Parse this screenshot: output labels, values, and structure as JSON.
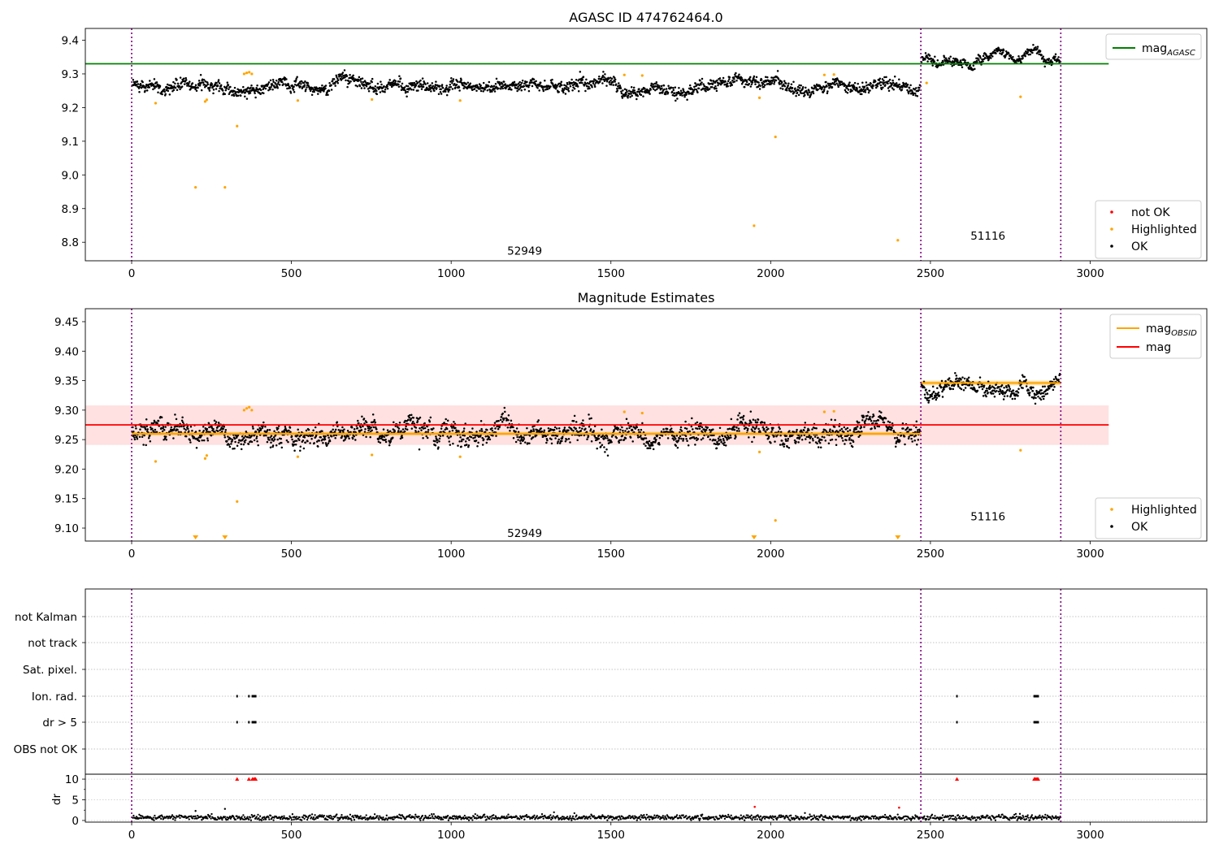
{
  "chart_data": [
    {
      "type": "scatter",
      "title": "AGASC ID 474762464.0",
      "xlim": [
        -145,
        3365
      ],
      "ylim": [
        8.745,
        9.435
      ],
      "xticks": [
        0,
        500,
        1000,
        1500,
        2000,
        2500,
        3000
      ],
      "yticks": [
        8.8,
        8.9,
        9.0,
        9.1,
        9.2,
        9.3,
        9.4
      ],
      "ytick_decimals": 1,
      "obsid_boundaries": [
        0,
        2470,
        2908
      ],
      "obsid_labels": [
        {
          "text": "52949",
          "x": 1230,
          "y": 8.775
        },
        {
          "text": "51116",
          "x": 2680,
          "y": 8.82
        }
      ],
      "mag_agasc": 9.33,
      "mag_agasc_xrange": [
        -145,
        3058
      ],
      "ok_segments": [
        {
          "x": [
            0,
            2470
          ],
          "center": 9.262,
          "spread": 0.014
        },
        {
          "x": [
            2470,
            2908
          ],
          "center": 9.346,
          "spread": 0.01
        }
      ],
      "highlighted": [
        {
          "x": 75,
          "y": 9.213
        },
        {
          "x": 200,
          "y": 8.963
        },
        {
          "x": 230,
          "y": 9.218
        },
        {
          "x": 235,
          "y": 9.223
        },
        {
          "x": 292,
          "y": 8.963
        },
        {
          "x": 330,
          "y": 9.145
        },
        {
          "x": 352,
          "y": 9.3
        },
        {
          "x": 360,
          "y": 9.303
        },
        {
          "x": 368,
          "y": 9.305
        },
        {
          "x": 376,
          "y": 9.3
        },
        {
          "x": 520,
          "y": 9.221
        },
        {
          "x": 752,
          "y": 9.224
        },
        {
          "x": 1028,
          "y": 9.221
        },
        {
          "x": 1542,
          "y": 9.297
        },
        {
          "x": 1598,
          "y": 9.295
        },
        {
          "x": 1948,
          "y": 8.849
        },
        {
          "x": 1965,
          "y": 9.229
        },
        {
          "x": 2015,
          "y": 9.113
        },
        {
          "x": 2168,
          "y": 9.297
        },
        {
          "x": 2198,
          "y": 9.298
        },
        {
          "x": 2398,
          "y": 8.806
        },
        {
          "x": 2488,
          "y": 9.273
        },
        {
          "x": 2782,
          "y": 9.232
        }
      ],
      "legend_lines": [
        {
          "label": "mag",
          "sub": "AGASC",
          "color": "#008000"
        }
      ],
      "legend_points": [
        {
          "label": "not OK",
          "color": "#ff0000"
        },
        {
          "label": "Highlighted",
          "color": "#ffa500"
        },
        {
          "label": "OK",
          "color": "#000000"
        }
      ]
    },
    {
      "type": "scatter",
      "title": "Magnitude Estimates",
      "xlim": [
        -145,
        3365
      ],
      "ylim": [
        9.078,
        9.472
      ],
      "xticks": [
        0,
        500,
        1000,
        1500,
        2000,
        2500,
        3000
      ],
      "yticks": [
        9.1,
        9.15,
        9.2,
        9.25,
        9.3,
        9.35,
        9.4,
        9.45
      ],
      "ytick_decimals": 2,
      "obsid_boundaries": [
        0,
        2470,
        2908
      ],
      "obsid_labels": [
        {
          "text": "52949",
          "x": 1230,
          "y": 9.092
        },
        {
          "text": "51116",
          "x": 2680,
          "y": 9.12
        }
      ],
      "mag": 9.275,
      "mag_band": [
        9.241,
        9.308
      ],
      "mag_xrange": [
        -145,
        3058
      ],
      "mag_obsid": [
        {
          "x": [
            0,
            2470
          ],
          "y": 9.26,
          "band": [
            9.257,
            9.263
          ]
        },
        {
          "x": [
            2470,
            2908
          ],
          "y": 9.346,
          "band": [
            9.342,
            9.35
          ]
        }
      ],
      "ok_segments": [
        {
          "x": [
            0,
            2470
          ],
          "center": 9.262,
          "spread": 0.014
        },
        {
          "x": [
            2470,
            2908
          ],
          "center": 9.346,
          "spread": 0.01
        }
      ],
      "highlighted": [
        {
          "x": 75,
          "y": 9.213
        },
        {
          "x": 230,
          "y": 9.218
        },
        {
          "x": 235,
          "y": 9.223
        },
        {
          "x": 330,
          "y": 9.145
        },
        {
          "x": 352,
          "y": 9.3
        },
        {
          "x": 360,
          "y": 9.303
        },
        {
          "x": 368,
          "y": 9.305
        },
        {
          "x": 376,
          "y": 9.3
        },
        {
          "x": 520,
          "y": 9.221
        },
        {
          "x": 752,
          "y": 9.224
        },
        {
          "x": 1028,
          "y": 9.221
        },
        {
          "x": 1542,
          "y": 9.297
        },
        {
          "x": 1598,
          "y": 9.295
        },
        {
          "x": 1965,
          "y": 9.229
        },
        {
          "x": 2015,
          "y": 9.113
        },
        {
          "x": 2168,
          "y": 9.297
        },
        {
          "x": 2198,
          "y": 9.298
        },
        {
          "x": 2782,
          "y": 9.232
        }
      ],
      "below_range_markers": [
        200,
        292,
        1948,
        2398
      ],
      "legend_lines": [
        {
          "label": "mag",
          "sub": "OBSID",
          "color": "#ffa500"
        },
        {
          "label": "mag",
          "sub": "",
          "color": "#ff0000"
        }
      ],
      "legend_points": [
        {
          "label": "Highlighted",
          "color": "#ffa500"
        },
        {
          "label": "OK",
          "color": "#000000"
        }
      ]
    },
    {
      "type": "scatter",
      "title": "",
      "xlim": [
        -145,
        3365
      ],
      "xticks": [
        0,
        500,
        1000,
        1500,
        2000,
        2500,
        3000
      ],
      "obsid_boundaries": [
        0,
        2470,
        2908
      ],
      "flag_rows": [
        "not Kalman",
        "not track",
        "Sat. pixel.",
        "Ion. rad.",
        "dr > 5",
        "OBS not OK"
      ],
      "flag_points": [
        {
          "row": "Ion. rad.",
          "x": [
            330,
            367,
            378,
            382,
            385,
            388,
            2583,
            2825,
            2828,
            2831,
            2834,
            2837
          ]
        },
        {
          "row": "dr > 5",
          "x": [
            330,
            367,
            378,
            382,
            385,
            388,
            2583,
            2825,
            2828,
            2831,
            2834,
            2837
          ]
        }
      ],
      "dr": {
        "ylabel": "dr",
        "ylim": [
          -0.4,
          10.6
        ],
        "yticks": [
          0,
          5,
          10
        ],
        "typical_center": 0.7,
        "typical_spread": 0.3,
        "red_clipped_x": [
          330,
          367,
          378,
          382,
          385,
          388,
          2583,
          2825,
          2828,
          2831,
          2834,
          2837
        ],
        "red_points": [
          {
            "x": 1950,
            "y": 3.3
          },
          {
            "x": 2402,
            "y": 3.1
          }
        ],
        "outliers": [
          {
            "x": 200,
            "y": 2.3
          },
          {
            "x": 292,
            "y": 2.8
          },
          {
            "x": 2780,
            "y": 1.6
          }
        ]
      }
    }
  ]
}
